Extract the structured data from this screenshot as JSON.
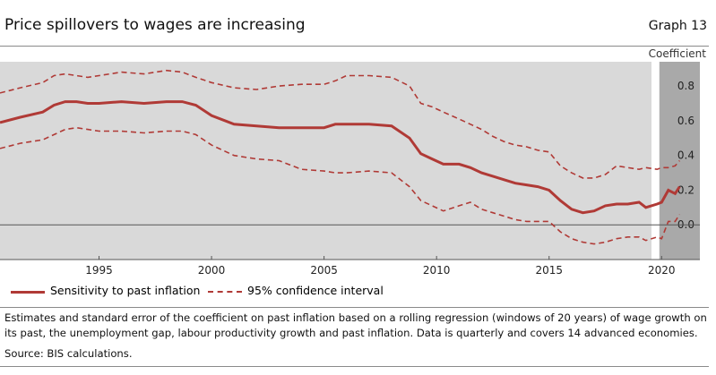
{
  "header": {
    "title": "Price spillovers to wages are increasing",
    "graph_label": "Graph 13"
  },
  "notes": {
    "description": "Estimates and standard error of the coefficient on past inflation based on a rolling regression (windows of 20 years) of wage growth on its past, the unemployment gap, labour productivity growth and past inflation. Data is quarterly and covers 14 advanced economies.",
    "source": "Source: BIS calculations."
  },
  "colors": {
    "background": "#d9d9d9",
    "shade": "#a9a9a9",
    "series": "#b03a36"
  },
  "chart_data": {
    "type": "line",
    "title": "Price spillovers to wages are increasing",
    "ylabel": "Coefficient",
    "xlabel": "",
    "xlim": [
      1990.6,
      2021.7
    ],
    "ylim": [
      -0.2,
      0.94
    ],
    "x_ticks": [
      1995,
      2000,
      2005,
      2010,
      2015,
      2020
    ],
    "x_tick_labels": [
      "1995",
      "2000",
      "2005",
      "2010",
      "2015",
      "2020"
    ],
    "y_ticks": [
      0.0,
      0.2,
      0.4,
      0.6,
      0.8
    ],
    "y_tick_labels": [
      "0.0",
      "0.2",
      "0.4",
      "0.6",
      "0.8"
    ],
    "zero_line": true,
    "shaded_region": {
      "from": 2019.9,
      "to": 2021.7
    },
    "legend": [
      "Sensitivity to past inflation",
      "95% confidence interval"
    ],
    "series": [
      {
        "name": "Sensitivity to past inflation",
        "style": "solid",
        "x": [
          1990.6,
          1991.5,
          1992.5,
          1993.0,
          1993.5,
          1994.0,
          1994.5,
          1995.0,
          1996.0,
          1997.0,
          1998.0,
          1998.7,
          1999.3,
          2000.0,
          2001.0,
          2002.0,
          2003.0,
          2004.0,
          2005.0,
          2005.5,
          2006.0,
          2007.0,
          2008.0,
          2008.8,
          2009.3,
          2009.8,
          2010.3,
          2011.0,
          2011.5,
          2012.0,
          2012.5,
          2013.0,
          2013.5,
          2014.0,
          2014.5,
          2015.0,
          2015.5,
          2016.0,
          2016.5,
          2017.0,
          2017.5,
          2018.0,
          2018.5,
          2019.0,
          2019.3,
          2019.8,
          2020.0,
          2020.3,
          2020.6,
          2020.8
        ],
        "y": [
          0.59,
          0.62,
          0.65,
          0.69,
          0.71,
          0.71,
          0.7,
          0.7,
          0.71,
          0.7,
          0.71,
          0.71,
          0.69,
          0.63,
          0.58,
          0.57,
          0.56,
          0.56,
          0.56,
          0.58,
          0.58,
          0.58,
          0.57,
          0.5,
          0.41,
          0.38,
          0.35,
          0.35,
          0.33,
          0.3,
          0.28,
          0.26,
          0.24,
          0.23,
          0.22,
          0.2,
          0.14,
          0.09,
          0.07,
          0.08,
          0.11,
          0.12,
          0.12,
          0.13,
          0.1,
          0.12,
          0.13,
          0.2,
          0.18,
          0.22
        ]
      },
      {
        "name": "95% confidence interval (upper)",
        "style": "dashed",
        "x": [
          1990.6,
          1991.5,
          1992.5,
          1993.0,
          1993.5,
          1994.0,
          1994.5,
          1995.0,
          1996.0,
          1997.0,
          1998.0,
          1998.7,
          1999.3,
          2000.0,
          2001.0,
          2002.0,
          2003.0,
          2004.0,
          2005.0,
          2005.5,
          2006.0,
          2007.0,
          2008.0,
          2008.8,
          2009.3,
          2009.8,
          2010.3,
          2011.0,
          2011.5,
          2012.0,
          2012.5,
          2013.0,
          2013.5,
          2014.0,
          2014.5,
          2015.0,
          2015.5,
          2016.0,
          2016.5,
          2017.0,
          2017.5,
          2018.0,
          2018.5,
          2019.0,
          2019.3,
          2019.8,
          2020.0,
          2020.3,
          2020.6,
          2020.8
        ],
        "y": [
          0.76,
          0.79,
          0.82,
          0.86,
          0.87,
          0.86,
          0.85,
          0.86,
          0.88,
          0.87,
          0.89,
          0.88,
          0.85,
          0.82,
          0.79,
          0.78,
          0.8,
          0.81,
          0.81,
          0.83,
          0.86,
          0.86,
          0.85,
          0.8,
          0.7,
          0.68,
          0.65,
          0.61,
          0.58,
          0.55,
          0.51,
          0.48,
          0.46,
          0.45,
          0.43,
          0.42,
          0.34,
          0.3,
          0.27,
          0.27,
          0.29,
          0.34,
          0.33,
          0.32,
          0.33,
          0.32,
          0.33,
          0.33,
          0.34,
          0.37
        ]
      },
      {
        "name": "95% confidence interval (lower)",
        "style": "dashed",
        "x": [
          1990.6,
          1991.5,
          1992.5,
          1993.0,
          1993.5,
          1994.0,
          1994.5,
          1995.0,
          1996.0,
          1997.0,
          1998.0,
          1998.7,
          1999.3,
          2000.0,
          2001.0,
          2002.0,
          2003.0,
          2004.0,
          2005.0,
          2005.5,
          2006.0,
          2007.0,
          2008.0,
          2008.8,
          2009.3,
          2009.8,
          2010.3,
          2011.0,
          2011.5,
          2012.0,
          2012.5,
          2013.0,
          2013.5,
          2014.0,
          2014.5,
          2015.0,
          2015.5,
          2016.0,
          2016.5,
          2017.0,
          2017.5,
          2018.0,
          2018.5,
          2019.0,
          2019.3,
          2019.8,
          2020.0,
          2020.3,
          2020.6,
          2020.8
        ],
        "y": [
          0.44,
          0.47,
          0.49,
          0.52,
          0.55,
          0.56,
          0.55,
          0.54,
          0.54,
          0.53,
          0.54,
          0.54,
          0.52,
          0.46,
          0.4,
          0.38,
          0.37,
          0.32,
          0.31,
          0.3,
          0.3,
          0.31,
          0.3,
          0.22,
          0.14,
          0.11,
          0.08,
          0.11,
          0.13,
          0.09,
          0.07,
          0.05,
          0.03,
          0.02,
          0.02,
          0.02,
          -0.04,
          -0.08,
          -0.1,
          -0.11,
          -0.1,
          -0.08,
          -0.07,
          -0.07,
          -0.09,
          -0.07,
          -0.08,
          0.02,
          0.02,
          0.06
        ]
      }
    ]
  }
}
